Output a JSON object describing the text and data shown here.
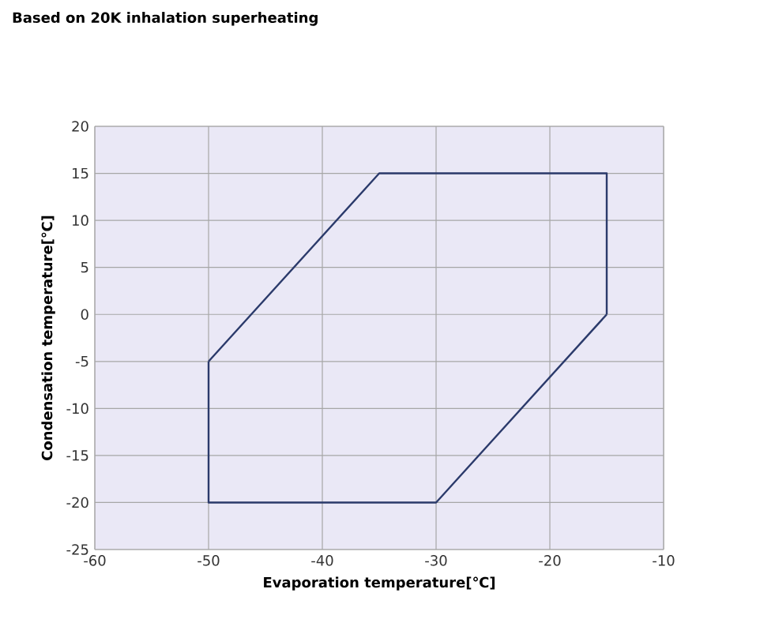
{
  "chart_data": {
    "type": "line",
    "title": "Based on 20K inhalation superheating",
    "xlabel": "Evaporation temperature[℃]",
    "ylabel": "Condensation temperature[℃]",
    "series": [
      {
        "color": "#2b3a6b",
        "x": [
          -50,
          -35,
          -15,
          -15
        ],
        "values": [
          -5,
          15,
          15,
          0
        ]
      },
      {
        "color": "#2b3a6b",
        "x": [
          -50,
          -50,
          -30,
          -15
        ],
        "values": [
          -5,
          -20,
          -20,
          0
        ]
      }
    ],
    "xlim": [
      -60,
      -10
    ],
    "xticks": [
      -60,
      -50,
      -40,
      -30,
      -20,
      -10
    ],
    "ylim": [
      -25,
      20
    ],
    "yticks": [
      -25,
      -20,
      -15,
      -10,
      -5,
      0,
      5,
      10,
      15,
      20
    ],
    "grid": true,
    "marker": "none",
    "line_style": "solid"
  }
}
